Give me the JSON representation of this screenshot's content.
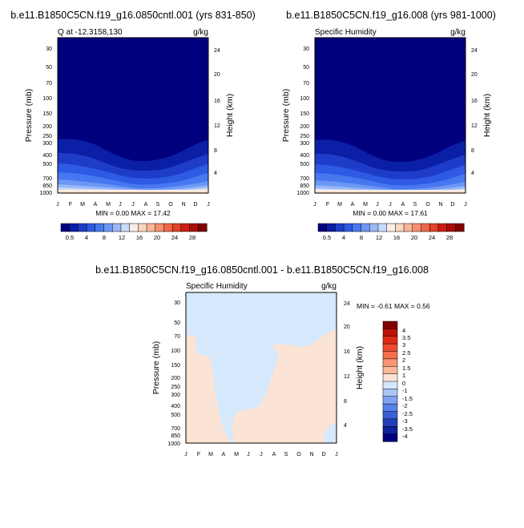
{
  "chart_data": [
    {
      "type": "heatmap",
      "title": "b.e11.B1850C5CN.f19_g16.0850cntl.001 (yrs 831-850)",
      "subtitle_left": "Q at -12.3158,130",
      "subtitle_right": "g/kg",
      "ylabel": "Pressure (mb)",
      "ylabel_right": "Height (km)",
      "x_ticks": [
        "J",
        "F",
        "M",
        "A",
        "M",
        "J",
        "J",
        "A",
        "S",
        "O",
        "N",
        "D",
        "J"
      ],
      "y_ticks": [
        30,
        50,
        70,
        100,
        150,
        200,
        250,
        300,
        400,
        500,
        700,
        850,
        1000
      ],
      "y_ticks_right": [
        24,
        20,
        16,
        12,
        8,
        4
      ],
      "ylim": [
        1000,
        20
      ],
      "log_y": true,
      "stats": "MIN =  0.00 MAX =  17.42",
      "min": 0.0,
      "max": 17.42,
      "colorbar_labels": [
        "0.5",
        "4",
        "8",
        "12",
        "16",
        "20",
        "24",
        "28"
      ],
      "colorbar_colors": [
        "#00007f",
        "#0a1fa6",
        "#1e3cc8",
        "#2e5ae4",
        "#4878f0",
        "#6d97f4",
        "#9ab8f7",
        "#c8dcfa",
        "#fbeee5",
        "#fbd5bd",
        "#f9b597",
        "#f58f6f",
        "#ef6848",
        "#e34128",
        "#cd1d12",
        "#a90c08",
        "#800000"
      ],
      "grid": false
    },
    {
      "type": "heatmap",
      "title": "b.e11.B1850C5CN.f19_g16.008 (yrs 981-1000)",
      "subtitle_left": "Specific Humidity",
      "subtitle_right": "g/kg",
      "ylabel": "Pressure (mb)",
      "ylabel_right": "Height (km)",
      "x_ticks": [
        "J",
        "F",
        "M",
        "A",
        "M",
        "J",
        "J",
        "A",
        "S",
        "O",
        "N",
        "D",
        "J"
      ],
      "y_ticks": [
        30,
        50,
        70,
        100,
        150,
        200,
        250,
        300,
        400,
        500,
        700,
        850,
        1000
      ],
      "y_ticks_right": [
        24,
        20,
        16,
        12,
        8,
        4
      ],
      "ylim": [
        1000,
        20
      ],
      "log_y": true,
      "stats": "MIN =  0.00 MAX =  17.61",
      "min": 0.0,
      "max": 17.61,
      "colorbar_labels": [
        "0.5",
        "4",
        "8",
        "12",
        "16",
        "20",
        "24",
        "28"
      ],
      "colorbar_colors": [
        "#00007f",
        "#0a1fa6",
        "#1e3cc8",
        "#2e5ae4",
        "#4878f0",
        "#6d97f4",
        "#9ab8f7",
        "#c8dcfa",
        "#fbeee5",
        "#fbd5bd",
        "#f9b597",
        "#f58f6f",
        "#ef6848",
        "#e34128",
        "#cd1d12",
        "#a90c08",
        "#800000"
      ],
      "grid": false
    },
    {
      "type": "heatmap",
      "title": "b.e11.B1850C5CN.f19_g16.0850cntl.001 - b.e11.B1850C5CN.f19_g16.008",
      "subtitle_left": "Specific Humidity",
      "subtitle_right": "g/kg",
      "ylabel": "Pressure (mb)",
      "ylabel_right": "Height (km)",
      "x_ticks": [
        "J",
        "F",
        "M",
        "A",
        "M",
        "J",
        "J",
        "A",
        "S",
        "O",
        "N",
        "D",
        "J"
      ],
      "y_ticks": [
        30,
        50,
        70,
        100,
        150,
        200,
        250,
        300,
        400,
        500,
        700,
        850,
        1000
      ],
      "y_ticks_right": [
        24,
        20,
        16,
        12,
        8,
        4
      ],
      "ylim": [
        1000,
        20
      ],
      "log_y": true,
      "stats": "MIN = -0.61 MAX =   0.56",
      "min": -0.61,
      "max": 0.56,
      "colorbar_labels": [
        "4",
        "3.5",
        "3",
        "2.5",
        "2",
        "1.5",
        "1",
        "0",
        "-1",
        "-1.5",
        "-2",
        "-2.5",
        "-3",
        "-3.5",
        "-4"
      ],
      "colorbar_colors": [
        "#800000",
        "#bb1208",
        "#df2a14",
        "#ef4a2c",
        "#f56f4d",
        "#f89472",
        "#fab899",
        "#fbe4d6",
        "#d6e8fb",
        "#a9c6f6",
        "#7fa3f2",
        "#5680ea",
        "#3a5fd6",
        "#2240b6",
        "#0d2296",
        "#00007f"
      ],
      "grid": false
    }
  ]
}
